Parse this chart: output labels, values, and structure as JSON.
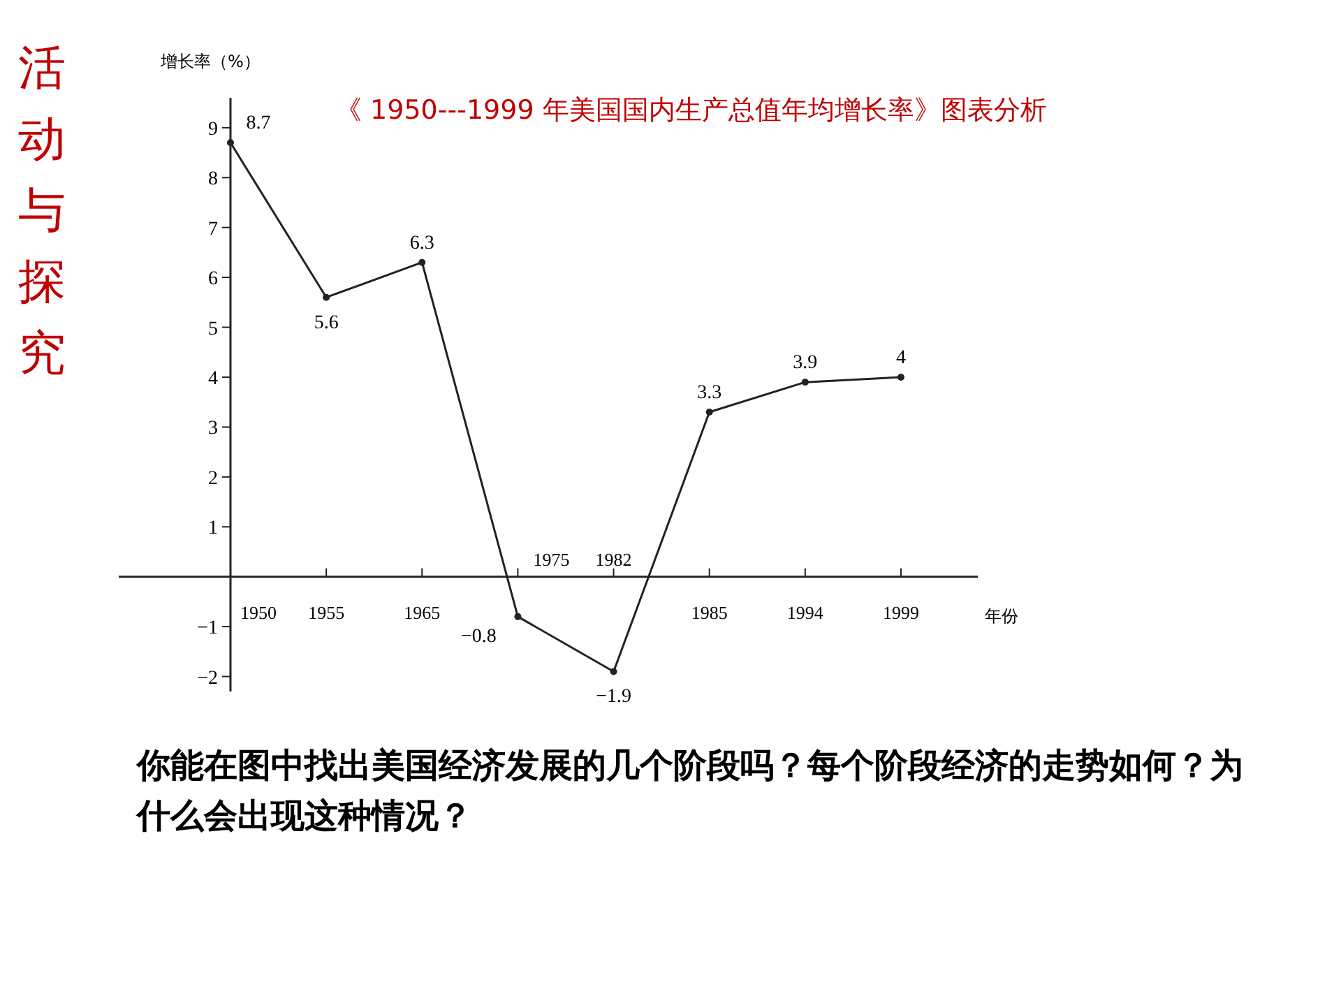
{
  "chart_data": {
    "type": "line",
    "title": "《 1950---1999 年美国国内生产总值年均增长率》图表分析",
    "ylabel": "增长率（%）",
    "xlabel": "年份",
    "categories": [
      "1950",
      "1955",
      "1965",
      "1975",
      "1982",
      "1985",
      "1994",
      "1999"
    ],
    "series": [
      {
        "color": "#222222",
        "values": [
          8.7,
          5.6,
          6.3,
          -0.8,
          -1.9,
          3.3,
          3.9,
          4
        ]
      }
    ],
    "ylim": [
      -2.3,
      9.6
    ],
    "yticks": [
      -2,
      -1,
      1,
      2,
      3,
      4,
      5,
      6,
      7,
      8,
      9
    ],
    "data_labels": true,
    "marker": "circle",
    "line_style": "solid",
    "annotations": [
      "活动与探究",
      "你能在图中找出美国经济发展的几个阶段吗？每个阶段经济的走势如何？为什么会出现这种情况？"
    ]
  }
}
